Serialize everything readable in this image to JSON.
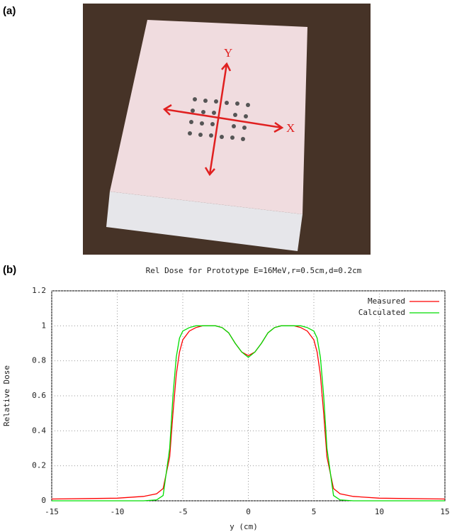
{
  "panel_a": {
    "label": "(a)",
    "arrow_labels": {
      "x": "X",
      "y": "Y"
    }
  },
  "panel_b": {
    "label": "(b)"
  },
  "chart_data": {
    "type": "line",
    "title": "Rel Dose for Prototype E=16MeV,r=0.5cm,d=0.2cm",
    "x_label": "y (cm)",
    "y_label": "Relative Dose",
    "x": [
      -15,
      -10,
      -8,
      -7,
      -6.5,
      -6,
      -5.75,
      -5.5,
      -5.25,
      -5,
      -4.5,
      -4,
      -3.5,
      -3,
      -2.5,
      -2,
      -1.5,
      -1,
      -0.5,
      0,
      0.5,
      1,
      1.5,
      2,
      2.5,
      3,
      3.5,
      4,
      4.5,
      5,
      5.25,
      5.5,
      5.75,
      6,
      6.5,
      7,
      8,
      10,
      15
    ],
    "series": [
      {
        "name": "Measured",
        "color": "#ff0000",
        "values": [
          0.01,
          0.015,
          0.025,
          0.04,
          0.07,
          0.25,
          0.5,
          0.72,
          0.85,
          0.92,
          0.97,
          0.99,
          1.0,
          1.0,
          1.0,
          0.99,
          0.96,
          0.9,
          0.85,
          0.83,
          0.85,
          0.9,
          0.96,
          0.99,
          1.0,
          1.0,
          1.0,
          0.99,
          0.97,
          0.92,
          0.85,
          0.72,
          0.5,
          0.25,
          0.07,
          0.04,
          0.025,
          0.015,
          0.01
        ]
      },
      {
        "name": "Calculated",
        "color": "#00dd00",
        "values": [
          0,
          0,
          0,
          0.005,
          0.03,
          0.3,
          0.6,
          0.82,
          0.93,
          0.97,
          0.99,
          1.0,
          1.0,
          1.0,
          1.0,
          0.99,
          0.96,
          0.9,
          0.85,
          0.82,
          0.85,
          0.9,
          0.96,
          0.99,
          1.0,
          1.0,
          1.0,
          1.0,
          0.99,
          0.97,
          0.93,
          0.82,
          0.6,
          0.3,
          0.03,
          0.005,
          0,
          0,
          0
        ]
      }
    ],
    "xlim": [
      -15,
      15
    ],
    "xticks": [
      -15,
      -10,
      -5,
      0,
      5,
      10,
      15
    ],
    "ylim": [
      0,
      1.2
    ],
    "yticks": [
      0,
      0.2,
      0.4,
      0.6,
      0.8,
      1,
      1.2
    ],
    "grid": true,
    "legend": "top-right"
  }
}
